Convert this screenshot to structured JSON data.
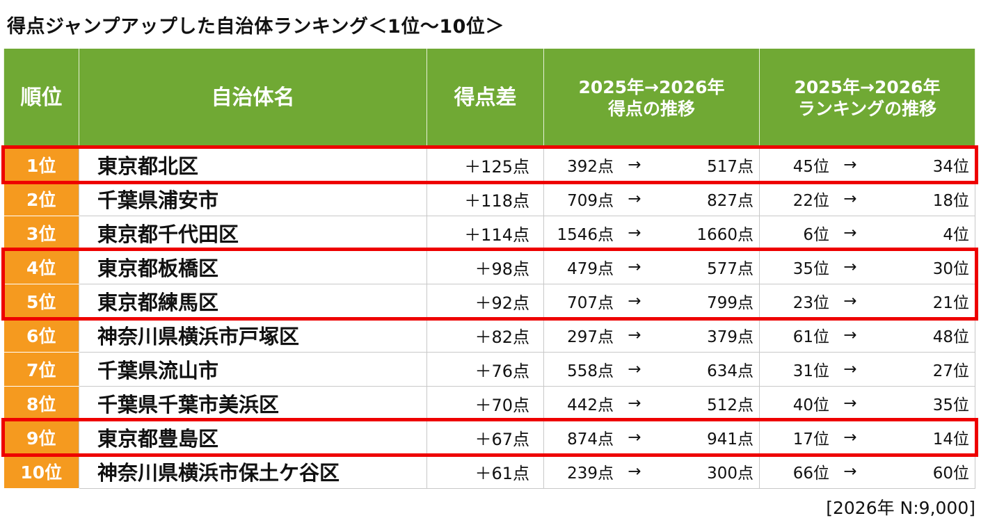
{
  "title": "得点ジャンプアップした自治体ランキング＜1位～10位＞",
  "note": "[2026年 N:9,000]",
  "headers": {
    "rank": "順位",
    "name": "自治体名",
    "diff": "得点差",
    "score_line1": "2025年→2026年",
    "score_line2": "得点の推移",
    "rank_line1": "2025年→2026年",
    "rank_line2": "ランキングの推移"
  },
  "arrow": "→",
  "colors": {
    "header": "#70a934",
    "rank": "#f59a1f",
    "highlight": "#ee0000"
  },
  "chart_data": {
    "type": "table",
    "title": "得点ジャンプアップした自治体ランキング＜1位～10位＞",
    "columns": [
      "順位",
      "自治体名",
      "得点差",
      "2025年→2026年 得点の推移",
      "2025年→2026年 ランキングの推移"
    ],
    "highlighted_ranks": [
      "1位",
      "4位",
      "5位",
      "9位"
    ],
    "rows": [
      {
        "rank": "1位",
        "name": "東京都北区",
        "diff": "＋125点",
        "score_2025": "392点",
        "score_2026": "517点",
        "rank_2025": "45位",
        "rank_2026": "34位"
      },
      {
        "rank": "2位",
        "name": "千葉県浦安市",
        "diff": "＋118点",
        "score_2025": "709点",
        "score_2026": "827点",
        "rank_2025": "22位",
        "rank_2026": "18位"
      },
      {
        "rank": "3位",
        "name": "東京都千代田区",
        "diff": "＋114点",
        "score_2025": "1546点",
        "score_2026": "1660点",
        "rank_2025": "6位",
        "rank_2026": "4位"
      },
      {
        "rank": "4位",
        "name": "東京都板橋区",
        "diff": "＋98点",
        "score_2025": "479点",
        "score_2026": "577点",
        "rank_2025": "35位",
        "rank_2026": "30位"
      },
      {
        "rank": "5位",
        "name": "東京都練馬区",
        "diff": "＋92点",
        "score_2025": "707点",
        "score_2026": "799点",
        "rank_2025": "23位",
        "rank_2026": "21位"
      },
      {
        "rank": "6位",
        "name": "神奈川県横浜市戸塚区",
        "diff": "＋82点",
        "score_2025": "297点",
        "score_2026": "379点",
        "rank_2025": "61位",
        "rank_2026": "48位"
      },
      {
        "rank": "7位",
        "name": "千葉県流山市",
        "diff": "＋76点",
        "score_2025": "558点",
        "score_2026": "634点",
        "rank_2025": "31位",
        "rank_2026": "27位"
      },
      {
        "rank": "8位",
        "name": "千葉県千葉市美浜区",
        "diff": "＋70点",
        "score_2025": "442点",
        "score_2026": "512点",
        "rank_2025": "40位",
        "rank_2026": "35位"
      },
      {
        "rank": "9位",
        "name": "東京都豊島区",
        "diff": "＋67点",
        "score_2025": "874点",
        "score_2026": "941点",
        "rank_2025": "17位",
        "rank_2026": "14位"
      },
      {
        "rank": "10位",
        "name": "神奈川県横浜市保土ケ谷区",
        "diff": "＋61点",
        "score_2025": "239点",
        "score_2026": "300点",
        "rank_2025": "66位",
        "rank_2026": "60位"
      }
    ]
  }
}
